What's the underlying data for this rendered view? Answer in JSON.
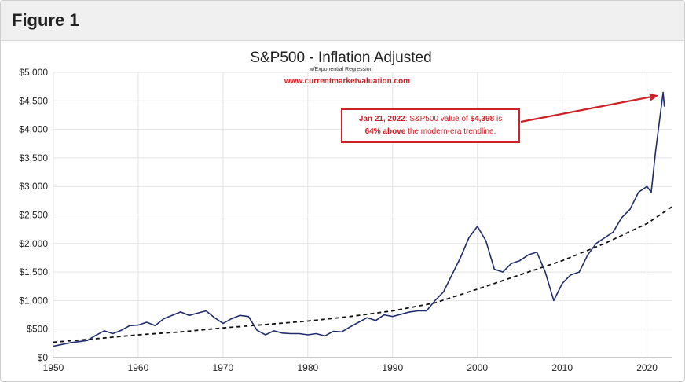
{
  "figure_label": "Figure 1",
  "chart_data": {
    "type": "line",
    "title": "S&P500 - Inflation Adjusted",
    "subtitle": "w/Exponential Regression",
    "source_url": "www.currentmarketvaluation.com",
    "xlabel": "",
    "ylabel": "",
    "xlim": [
      1950,
      2023
    ],
    "ylim": [
      0,
      5000
    ],
    "x_ticks": [
      "1950",
      "1960",
      "1970",
      "1980",
      "1990",
      "2000",
      "2010",
      "2020"
    ],
    "y_ticks": [
      "$0",
      "$500",
      "$1,000",
      "$1,500",
      "$2,000",
      "$2,500",
      "$3,000",
      "$3,500",
      "$4,000",
      "$4,500",
      "$5,000"
    ],
    "grid": true,
    "colors": {
      "series": "#1f2d6b",
      "trend": "#111111",
      "callout": "#cf2027",
      "url": "#cf2027"
    },
    "series": [
      {
        "values_x": [
          1950,
          1951,
          1952,
          1953,
          1954,
          1955,
          1956,
          1957,
          1958,
          1959,
          1960,
          1961,
          1962,
          1963,
          1964,
          1965,
          1966,
          1967,
          1968,
          1969,
          1970,
          1971,
          1972,
          1973,
          1974,
          1975,
          1976,
          1977,
          1978,
          1979,
          1980,
          1981,
          1982,
          1983,
          1984,
          1985,
          1986,
          1987,
          1988,
          1989,
          1990,
          1991,
          1992,
          1993,
          1994,
          1995,
          1996,
          1997,
          1998,
          1999,
          2000,
          2001,
          2002,
          2003,
          2004,
          2005,
          2006,
          2007,
          2008,
          2009,
          2010,
          2011,
          2012,
          2013,
          2014,
          2015,
          2016,
          2017,
          2018,
          2019,
          2020,
          2020.5,
          2021,
          2021.9,
          2022.05
        ],
        "values_y": [
          200,
          230,
          260,
          280,
          300,
          390,
          470,
          420,
          480,
          560,
          570,
          620,
          560,
          680,
          740,
          800,
          740,
          780,
          820,
          700,
          600,
          680,
          740,
          720,
          480,
          400,
          470,
          430,
          420,
          420,
          400,
          420,
          380,
          460,
          450,
          540,
          620,
          700,
          650,
          750,
          720,
          760,
          800,
          820,
          820,
          1000,
          1150,
          1450,
          1750,
          2100,
          2300,
          2050,
          1550,
          1500,
          1650,
          1700,
          1800,
          1850,
          1500,
          1000,
          1300,
          1450,
          1500,
          1800,
          2000,
          2100,
          2200,
          2450,
          2600,
          2900,
          3000,
          2900,
          3600,
          4650,
          4398
        ]
      },
      {
        "name": "trendline",
        "values_x": [
          1950,
          1955,
          1960,
          1965,
          1970,
          1975,
          1980,
          1985,
          1990,
          1995,
          2000,
          2005,
          2010,
          2015,
          2020,
          2023
        ],
        "values_y": [
          270,
          330,
          400,
          450,
          520,
          580,
          640,
          720,
          820,
          960,
          1200,
          1450,
          1700,
          2000,
          2350,
          2650
        ]
      }
    ],
    "annotation": {
      "part1_bold": "Jan 21, 2022",
      "part1_rest": ": S&P500 value of ",
      "value_bold": "$4,398",
      "part1_end": " is",
      "part2_bold": "64% above",
      "part2_rest": " the modern-era trendline."
    }
  }
}
